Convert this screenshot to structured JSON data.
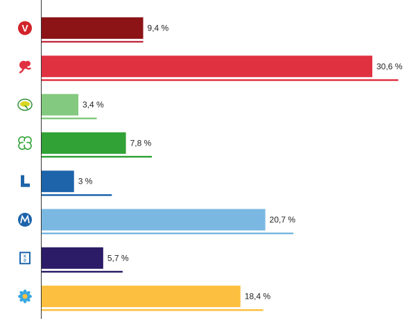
{
  "chart_data": {
    "type": "bar",
    "orientation": "horizontal",
    "grid": false,
    "legend": "none (party logos at left of each row)",
    "xlim": [
      0,
      32
    ],
    "series": [
      {
        "values": [
          9.4,
          30.6,
          3.4,
          7.8,
          3.0,
          20.7,
          5.7,
          18.4
        ]
      },
      {
        "values": [
          9.4,
          33.0,
          5.1,
          10.2,
          6.5,
          23.3,
          7.5,
          20.5
        ]
      }
    ],
    "data_labels": [
      "9,4 %",
      "30,6 %",
      "3,4 %",
      "7,8 %",
      "3 %",
      "20,7 %",
      "5,7 %",
      "18,4 %"
    ],
    "bar_colors": [
      "#8c1417",
      "#e03141",
      "#83c97f",
      "#30a236",
      "#1d64aa",
      "#7ab8e2",
      "#2c1b66",
      "#fdbf3f"
    ],
    "comparison_colors": [
      "#c43246",
      "#e03141",
      "#83c97f",
      "#30a236",
      "#1d64aa",
      "#7ab8e2",
      "#2c1b66",
      "#fdbf3f"
    ]
  },
  "logos": [
    {
      "icon": "v-party-logo",
      "text": "V",
      "color": "#d2232a"
    },
    {
      "icon": "s-party-rose-logo",
      "text": "",
      "color": "#e03141"
    },
    {
      "icon": "mp-party-dandelion-logo",
      "text": "",
      "color": "#83c97f"
    },
    {
      "icon": "c-party-clover-logo",
      "text": "",
      "color": "#30a236"
    },
    {
      "icon": "l-party-logo",
      "text": "L",
      "color": "#1d64aa"
    },
    {
      "icon": "m-party-logo",
      "text": "M",
      "color": "#1d64aa"
    },
    {
      "icon": "kd-party-logo",
      "text": "K D",
      "color": "#1d64aa"
    },
    {
      "icon": "sd-party-flower-logo",
      "text": "",
      "color": "#fdbf3f"
    }
  ]
}
